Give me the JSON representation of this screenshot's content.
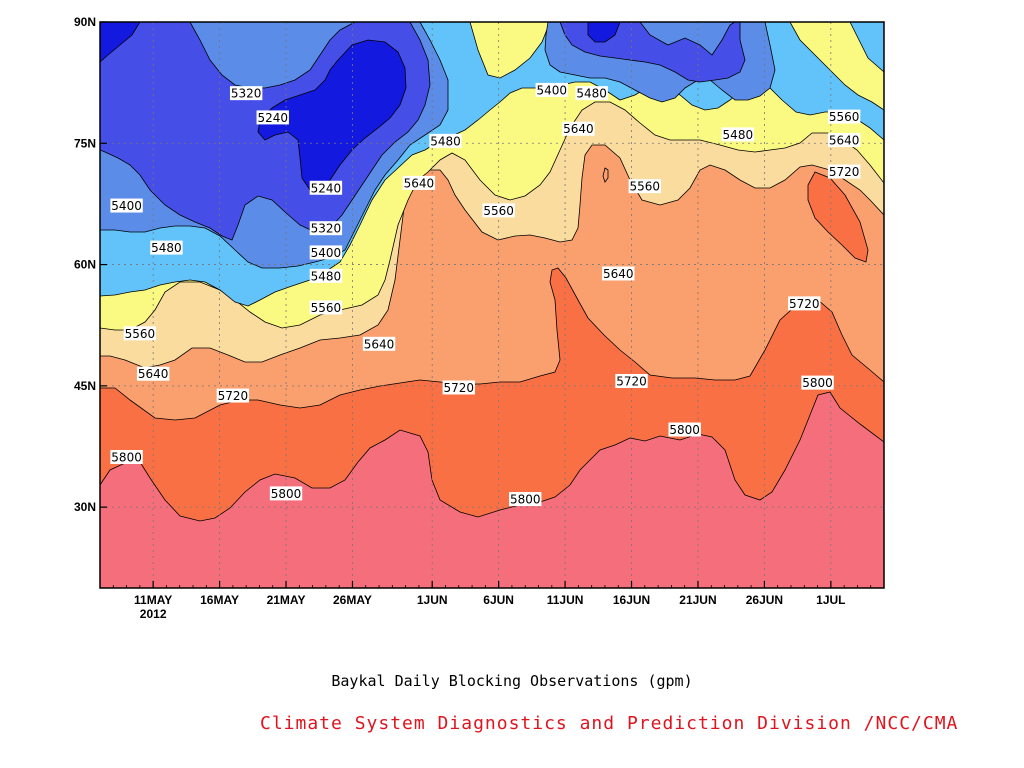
{
  "chart_data": {
    "type": "contour",
    "title": "Baykal Daily Blocking Observations (gpm)",
    "y_tick_labels": [
      "90N",
      "75N",
      "60N",
      "45N",
      "30N"
    ],
    "y_ticks": [
      90,
      75,
      60,
      45,
      30
    ],
    "ylim": [
      20,
      90
    ],
    "x_tick_labels": [
      "11MAY",
      "16MAY",
      "21MAY",
      "26MAY",
      "1JUN",
      "6JUN",
      "11JUN",
      "16JUN",
      "21JUN",
      "26JUN",
      "1JUL"
    ],
    "x_year_label": "2012",
    "x_ticks": [
      "2012-05-11",
      "2012-05-16",
      "2012-05-21",
      "2012-05-26",
      "2012-06-01",
      "2012-06-06",
      "2012-06-11",
      "2012-06-16",
      "2012-06-21",
      "2012-06-26",
      "2012-07-01"
    ],
    "xlim": [
      "2012-05-07",
      "2012-07-05"
    ],
    "grid": "dotted",
    "levels": [
      5240,
      5320,
      5400,
      5480,
      5560,
      5640,
      5720,
      5800
    ],
    "band_colors": [
      "#1419e0",
      "#464ee8",
      "#5a8ce8",
      "#62c3fa",
      "#fafa82",
      "#fadc9f",
      "#fa9f6e",
      "#fa7045",
      "#f56e7b"
    ],
    "contour_labels": [
      {
        "text": "5320",
        "date": "2012-05-18",
        "lat": 81.2
      },
      {
        "text": "5240",
        "date": "2012-05-20",
        "lat": 78.2
      },
      {
        "text": "5240",
        "date": "2012-05-24",
        "lat": 69.5
      },
      {
        "text": "5400",
        "date": "2012-06-10",
        "lat": 81.6
      },
      {
        "text": "5480",
        "date": "2012-06-13",
        "lat": 81.2
      },
      {
        "text": "5560",
        "date": "2012-07-02",
        "lat": 78.3
      },
      {
        "text": "5480",
        "date": "2012-06-02",
        "lat": 75.3
      },
      {
        "text": "5640",
        "date": "2012-06-12",
        "lat": 76.8
      },
      {
        "text": "5480",
        "date": "2012-06-24",
        "lat": 76.1
      },
      {
        "text": "5640",
        "date": "2012-07-02",
        "lat": 75.4
      },
      {
        "text": "5400",
        "date": "2012-05-09",
        "lat": 67.3
      },
      {
        "text": "5640",
        "date": "2012-05-31",
        "lat": 70.1
      },
      {
        "text": "5560",
        "date": "2012-06-06",
        "lat": 66.7
      },
      {
        "text": "5560",
        "date": "2012-06-17",
        "lat": 69.7
      },
      {
        "text": "5720",
        "date": "2012-07-02",
        "lat": 71.5
      },
      {
        "text": "5320",
        "date": "2012-05-24",
        "lat": 64.5
      },
      {
        "text": "5480",
        "date": "2012-05-12",
        "lat": 62.1
      },
      {
        "text": "5400",
        "date": "2012-05-24",
        "lat": 61.5
      },
      {
        "text": "5480",
        "date": "2012-05-24",
        "lat": 58.6
      },
      {
        "text": "5640",
        "date": "2012-06-15",
        "lat": 58.9
      },
      {
        "text": "5560",
        "date": "2012-05-24",
        "lat": 54.7
      },
      {
        "text": "5720",
        "date": "2012-06-29",
        "lat": 55.2
      },
      {
        "text": "5560",
        "date": "2012-05-10",
        "lat": 51.5
      },
      {
        "text": "5640",
        "date": "2012-05-28",
        "lat": 50.2
      },
      {
        "text": "5640",
        "date": "2012-05-11",
        "lat": 46.5
      },
      {
        "text": "5720",
        "date": "2012-06-03",
        "lat": 44.8
      },
      {
        "text": "5720",
        "date": "2012-06-16",
        "lat": 45.6
      },
      {
        "text": "5800",
        "date": "2012-06-30",
        "lat": 45.4
      },
      {
        "text": "5720",
        "date": "2012-05-17",
        "lat": 43.8
      },
      {
        "text": "5800",
        "date": "2012-06-20",
        "lat": 39.6
      },
      {
        "text": "5800",
        "date": "2012-05-09",
        "lat": 36.2
      },
      {
        "text": "5800",
        "date": "2012-05-21",
        "lat": 31.7
      },
      {
        "text": "5800",
        "date": "2012-06-08",
        "lat": 31.0
      }
    ]
  },
  "credit": {
    "text": "Climate System Diagnostics and Prediction Division /NCC/CMA",
    "color": "#e0141e"
  }
}
